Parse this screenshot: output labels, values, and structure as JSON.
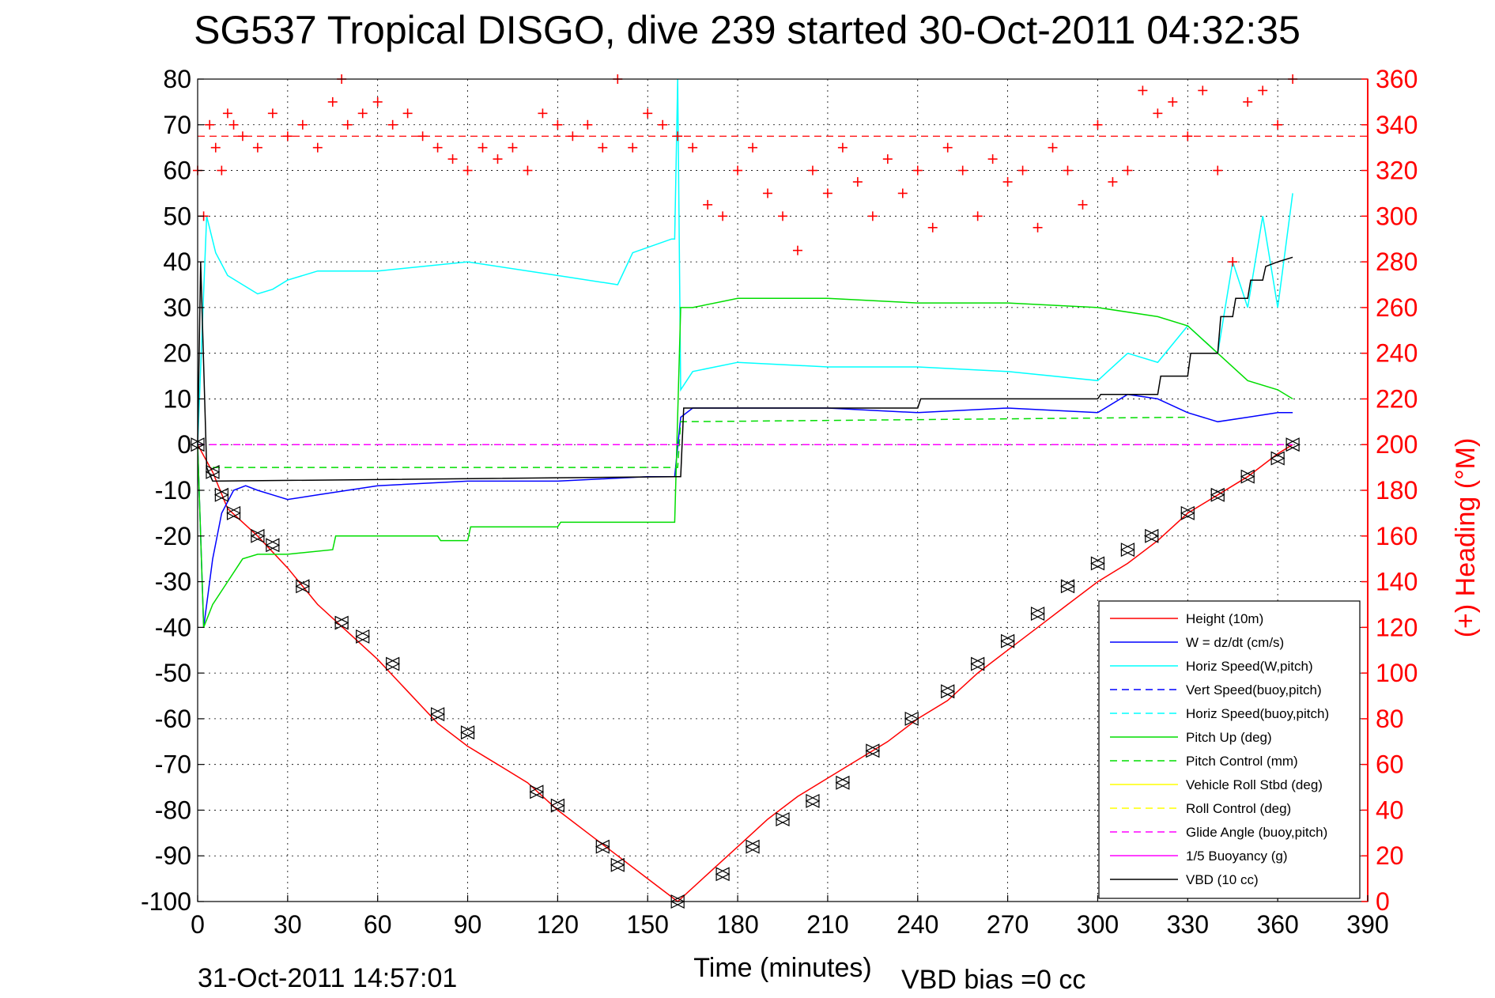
{
  "chart_data": {
    "type": "line",
    "title": "SG537 Tropical DISGO, dive 239 started 30-Oct-2011 04:32:35",
    "xlabel": "Time (minutes)",
    "y2label": "(+) Heading (°M)",
    "footer_left": "31-Oct-2011 14:57:01",
    "footer_right": "VBD bias =0 cc",
    "xlim": [
      0,
      390
    ],
    "ylim": [
      -100,
      80
    ],
    "y2lim": [
      0,
      360
    ],
    "x_ticks": [
      "0",
      "30",
      "60",
      "90",
      "120",
      "150",
      "180",
      "210",
      "240",
      "270",
      "300",
      "330",
      "360",
      "390"
    ],
    "y_ticks": [
      "-100",
      "-90",
      "-80",
      "-70",
      "-60",
      "-50",
      "-40",
      "-30",
      "-20",
      "-10",
      "0",
      "10",
      "20",
      "30",
      "40",
      "50",
      "60",
      "70",
      "80"
    ],
    "y2_ticks": [
      "0",
      "20",
      "40",
      "60",
      "80",
      "100",
      "120",
      "140",
      "160",
      "180",
      "200",
      "220",
      "240",
      "260",
      "280",
      "300",
      "320",
      "340",
      "360"
    ],
    "grid": true,
    "legend_position": "bottom-right",
    "colors": {
      "height": "#ff0000",
      "w": "#0000ff",
      "horiz_speed": "#00ffff",
      "vert_speed_buoy": "#0000ff",
      "horiz_speed_buoy": "#00ffff",
      "pitch": "#00dd00",
      "pitch_control": "#00dd00",
      "roll": "#ffff00",
      "roll_control": "#ffff00",
      "glide": "#ff00ff",
      "buoyancy": "#ff00ff",
      "vbd": "#000000",
      "heading": "#ff0000"
    },
    "series": [
      {
        "name": "Height (10m)",
        "key": "height",
        "dash": false,
        "x": [
          0,
          5,
          10,
          20,
          30,
          40,
          50,
          60,
          70,
          80,
          90,
          100,
          110,
          120,
          130,
          140,
          150,
          160,
          170,
          180,
          190,
          200,
          210,
          220,
          230,
          240,
          250,
          260,
          270,
          280,
          290,
          300,
          310,
          320,
          330,
          340,
          350,
          360,
          365
        ],
        "y": [
          0,
          -6,
          -14,
          -20,
          -27,
          -35,
          -41,
          -47,
          -54,
          -61,
          -66,
          -70,
          -74,
          -80,
          -85,
          -90,
          -95,
          -100,
          -94,
          -88,
          -82,
          -77,
          -73,
          -69,
          -65,
          -60,
          -56,
          -50,
          -45,
          -40,
          -35,
          -30,
          -26,
          -21,
          -15,
          -11,
          -7,
          -2,
          0
        ]
      },
      {
        "name": "W = dz/dt (cm/s)",
        "key": "w",
        "dash": false,
        "x": [
          0,
          2,
          5,
          8,
          12,
          16,
          20,
          25,
          30,
          40,
          60,
          90,
          120,
          150,
          159,
          161,
          165,
          180,
          210,
          240,
          270,
          300,
          310,
          320,
          330,
          340,
          350,
          360,
          365
        ],
        "y": [
          0,
          -40,
          -25,
          -15,
          -10,
          -9,
          -10,
          -11,
          -12,
          -11,
          -9,
          -8,
          -8,
          -7,
          -7,
          6,
          8,
          8,
          8,
          7,
          8,
          7,
          11,
          10,
          7,
          5,
          6,
          7,
          7
        ]
      },
      {
        "name": "Horiz Speed(W,pitch)",
        "key": "horiz_speed",
        "dash": false,
        "x": [
          0,
          3,
          6,
          10,
          15,
          20,
          25,
          30,
          40,
          60,
          90,
          120,
          140,
          145,
          158,
          159,
          160,
          161,
          165,
          180,
          210,
          240,
          270,
          300,
          310,
          320,
          330,
          340,
          345,
          350,
          355,
          360,
          365
        ],
        "y": [
          0,
          50,
          42,
          37,
          35,
          33,
          34,
          36,
          38,
          38,
          40,
          37,
          35,
          42,
          45,
          45,
          80,
          12,
          16,
          18,
          17,
          17,
          16,
          14,
          20,
          18,
          26,
          20,
          40,
          30,
          50,
          30,
          55
        ]
      },
      {
        "name": "Vert Speed(buoy,pitch)",
        "key": "vert_speed_buoy",
        "dash": true,
        "x": [],
        "y": []
      },
      {
        "name": "Horiz Speed(buoy,pitch)",
        "key": "horiz_speed_buoy",
        "dash": true,
        "x": [],
        "y": []
      },
      {
        "name": "Pitch Up (deg)",
        "key": "pitch",
        "dash": false,
        "x": [
          0,
          2,
          5,
          10,
          15,
          20,
          25,
          30,
          45,
          46,
          80,
          81,
          90,
          91,
          120,
          121,
          150,
          158,
          159,
          161,
          165,
          180,
          210,
          240,
          270,
          300,
          320,
          330,
          340,
          350,
          360,
          365
        ],
        "y": [
          0,
          -40,
          -35,
          -30,
          -25,
          -24,
          -24,
          -24,
          -23,
          -20,
          -20,
          -21,
          -21,
          -18,
          -18,
          -17,
          -17,
          -17,
          -17,
          30,
          30,
          32,
          32,
          31,
          31,
          30,
          28,
          26,
          20,
          14,
          12,
          10
        ]
      },
      {
        "name": "Pitch Control (mm)",
        "key": "pitch_control",
        "dash": true,
        "x": [
          5,
          160,
          161,
          330
        ],
        "y": [
          -5,
          -5,
          5,
          6
        ]
      },
      {
        "name": "Vehicle Roll Stbd (deg)",
        "key": "roll",
        "dash": false,
        "x": [],
        "y": []
      },
      {
        "name": "Roll Control (deg)",
        "key": "roll_control",
        "dash": true,
        "x": [],
        "y": []
      },
      {
        "name": "Glide Angle (buoy,pitch)",
        "key": "glide",
        "dash": true,
        "x": [
          0,
          365
        ],
        "y": [
          0,
          0
        ]
      },
      {
        "name": "1/5 Buoyancy (g)",
        "key": "buoyancy",
        "dash": false,
        "x": [],
        "y": []
      },
      {
        "name": "VBD (10 cc)",
        "key": "vbd",
        "dash": false,
        "x": [
          0,
          1,
          3,
          5,
          160,
          161,
          162,
          240,
          241,
          300,
          301,
          320,
          321,
          330,
          331,
          340,
          341,
          345,
          346,
          350,
          351,
          355,
          356,
          360,
          365
        ],
        "y": [
          0,
          40,
          -5,
          -8,
          -7,
          -7,
          8,
          8,
          10,
          10,
          11,
          11,
          15,
          15,
          20,
          20,
          28,
          28,
          32,
          32,
          36,
          36,
          39,
          40,
          41
        ]
      }
    ],
    "heading": {
      "name": "Heading",
      "mean_y2": 335,
      "x": [
        0,
        2,
        4,
        6,
        8,
        10,
        12,
        15,
        20,
        25,
        30,
        35,
        40,
        45,
        48,
        50,
        55,
        60,
        65,
        70,
        75,
        80,
        85,
        90,
        95,
        100,
        105,
        110,
        115,
        120,
        125,
        130,
        135,
        140,
        145,
        150,
        155,
        160,
        165,
        170,
        175,
        180,
        185,
        190,
        195,
        200,
        205,
        210,
        215,
        220,
        225,
        230,
        235,
        240,
        245,
        250,
        255,
        260,
        265,
        270,
        275,
        280,
        285,
        290,
        295,
        300,
        305,
        310,
        315,
        320,
        325,
        330,
        335,
        340,
        345,
        350,
        355,
        360,
        365
      ],
      "y": [
        320,
        300,
        340,
        330,
        320,
        345,
        340,
        335,
        330,
        345,
        335,
        340,
        330,
        350,
        360,
        340,
        345,
        350,
        340,
        345,
        335,
        330,
        325,
        320,
        330,
        325,
        330,
        320,
        345,
        340,
        335,
        340,
        330,
        360,
        330,
        345,
        340,
        335,
        330,
        305,
        300,
        320,
        330,
        310,
        300,
        285,
        320,
        310,
        330,
        315,
        300,
        325,
        310,
        320,
        295,
        330,
        320,
        300,
        325,
        315,
        320,
        295,
        330,
        320,
        305,
        340,
        315,
        320,
        355,
        345,
        350,
        335,
        355,
        320,
        280,
        350,
        355,
        340,
        360
      ]
    },
    "markers_height": {
      "x": [
        0,
        5,
        8,
        12,
        20,
        25,
        35,
        48,
        55,
        65,
        80,
        90,
        113,
        120,
        135,
        140,
        160,
        175,
        185,
        195,
        205,
        215,
        225,
        238,
        250,
        260,
        270,
        280,
        290,
        300,
        310,
        318,
        330,
        340,
        350,
        360,
        365
      ],
      "y": [
        0,
        -6,
        -11,
        -15,
        -20,
        -22,
        -31,
        -39,
        -42,
        -48,
        -59,
        -63,
        -76,
        -79,
        -88,
        -92,
        -100,
        -94,
        -88,
        -82,
        -78,
        -74,
        -67,
        -60,
        -54,
        -48,
        -43,
        -37,
        -31,
        -26,
        -23,
        -20,
        -15,
        -11,
        -7,
        -3,
        0
      ]
    },
    "legend_entries": [
      "Height (10m)",
      "W = dz/dt (cm/s)",
      "Horiz Speed(W,pitch)",
      "Vert Speed(buoy,pitch)",
      "Horiz Speed(buoy,pitch)",
      "Pitch Up (deg)",
      "Pitch Control (mm)",
      "Vehicle Roll Stbd (deg)",
      "Roll Control (deg)",
      "Glide Angle (buoy,pitch)",
      "1/5 Buoyancy (g)",
      "VBD (10 cc)"
    ]
  }
}
